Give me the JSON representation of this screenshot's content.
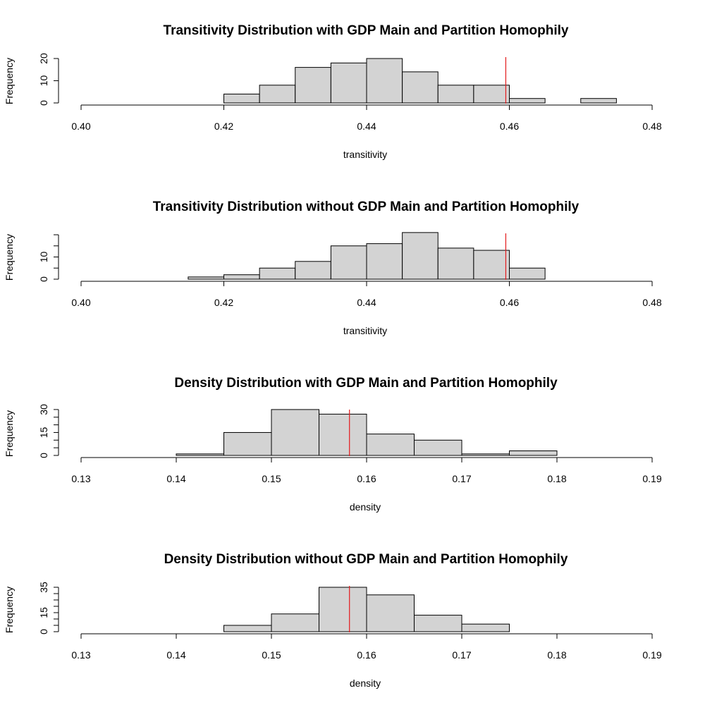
{
  "colors": {
    "bar_fill": "#d3d3d3",
    "bar_stroke": "#000000",
    "ref_line": "#e41a1c"
  },
  "chart_data": [
    {
      "type": "bar",
      "title": "Transitivity Distribution with GDP Main and Partition Homophily",
      "xlabel": "transitivity",
      "ylabel": "Frequency",
      "xlim": [
        0.4,
        0.48
      ],
      "xticks": [
        0.4,
        0.42,
        0.44,
        0.46,
        0.48
      ],
      "xtick_labels": [
        "0.40",
        "0.42",
        "0.44",
        "0.46",
        "0.48"
      ],
      "ylim": [
        0,
        20
      ],
      "yticks": [
        0,
        10,
        20
      ],
      "ytick_labels": [
        "0",
        "10",
        "20"
      ],
      "bins": [
        {
          "start": 0.42,
          "end": 0.425,
          "count": 4
        },
        {
          "start": 0.425,
          "end": 0.43,
          "count": 8
        },
        {
          "start": 0.43,
          "end": 0.435,
          "count": 16
        },
        {
          "start": 0.435,
          "end": 0.44,
          "count": 18
        },
        {
          "start": 0.44,
          "end": 0.445,
          "count": 20
        },
        {
          "start": 0.445,
          "end": 0.45,
          "count": 14
        },
        {
          "start": 0.45,
          "end": 0.455,
          "count": 8
        },
        {
          "start": 0.455,
          "end": 0.46,
          "count": 8
        },
        {
          "start": 0.46,
          "end": 0.465,
          "count": 2
        },
        {
          "start": 0.465,
          "end": 0.47,
          "count": 0
        },
        {
          "start": 0.47,
          "end": 0.475,
          "count": 2
        }
      ],
      "reference_line": 0.4595,
      "grid": false
    },
    {
      "type": "bar",
      "title": "Transitivity Distribution without GDP Main and Partition Homophily",
      "xlabel": "transitivity",
      "ylabel": "Frequency",
      "xlim": [
        0.4,
        0.48
      ],
      "xticks": [
        0.4,
        0.42,
        0.44,
        0.46,
        0.48
      ],
      "xtick_labels": [
        "0.40",
        "0.42",
        "0.44",
        "0.46",
        "0.48"
      ],
      "ylim": [
        0,
        20
      ],
      "yticks": [
        0,
        10
      ],
      "ytick_labels": [
        "0",
        "10"
      ],
      "yticks_minor": [
        0,
        5,
        10,
        15,
        20
      ],
      "bins": [
        {
          "start": 0.415,
          "end": 0.42,
          "count": 1
        },
        {
          "start": 0.42,
          "end": 0.425,
          "count": 2
        },
        {
          "start": 0.425,
          "end": 0.43,
          "count": 5
        },
        {
          "start": 0.43,
          "end": 0.435,
          "count": 8
        },
        {
          "start": 0.435,
          "end": 0.44,
          "count": 15
        },
        {
          "start": 0.44,
          "end": 0.445,
          "count": 16
        },
        {
          "start": 0.445,
          "end": 0.45,
          "count": 21
        },
        {
          "start": 0.45,
          "end": 0.455,
          "count": 14
        },
        {
          "start": 0.455,
          "end": 0.46,
          "count": 13
        },
        {
          "start": 0.46,
          "end": 0.465,
          "count": 5
        }
      ],
      "reference_line": 0.4595,
      "grid": false
    },
    {
      "type": "bar",
      "title": "Density Distribution with GDP Main and Partition Homophily",
      "xlabel": "density",
      "ylabel": "Frequency",
      "xlim": [
        0.13,
        0.19
      ],
      "xticks": [
        0.13,
        0.14,
        0.15,
        0.16,
        0.17,
        0.18,
        0.19
      ],
      "xtick_labels": [
        "0.13",
        "0.14",
        "0.15",
        "0.16",
        "0.17",
        "0.18",
        "0.19"
      ],
      "ylim": [
        0,
        30
      ],
      "yticks": [
        0,
        15,
        30
      ],
      "ytick_labels": [
        "0",
        "15",
        "30"
      ],
      "yticks_minor": [
        0,
        5,
        10,
        15,
        20,
        25,
        30
      ],
      "bins": [
        {
          "start": 0.14,
          "end": 0.145,
          "count": 1
        },
        {
          "start": 0.145,
          "end": 0.15,
          "count": 15
        },
        {
          "start": 0.15,
          "end": 0.155,
          "count": 30
        },
        {
          "start": 0.155,
          "end": 0.16,
          "count": 27
        },
        {
          "start": 0.16,
          "end": 0.165,
          "count": 14
        },
        {
          "start": 0.165,
          "end": 0.17,
          "count": 10
        },
        {
          "start": 0.17,
          "end": 0.175,
          "count": 1
        },
        {
          "start": 0.175,
          "end": 0.18,
          "count": 3
        }
      ],
      "reference_line": 0.1582,
      "grid": false
    },
    {
      "type": "bar",
      "title": "Density Distribution without GDP Main and Partition Homophily",
      "xlabel": "density",
      "ylabel": "Frequency",
      "xlim": [
        0.13,
        0.19
      ],
      "xticks": [
        0.13,
        0.14,
        0.15,
        0.16,
        0.17,
        0.18,
        0.19
      ],
      "xtick_labels": [
        "0.13",
        "0.14",
        "0.15",
        "0.16",
        "0.17",
        "0.18",
        "0.19"
      ],
      "ylim": [
        0,
        35
      ],
      "yticks": [
        0,
        15,
        35
      ],
      "ytick_labels": [
        "0",
        "15",
        "35"
      ],
      "yticks_minor": [
        0,
        5,
        10,
        15,
        20,
        25,
        30,
        35
      ],
      "bins": [
        {
          "start": 0.145,
          "end": 0.15,
          "count": 5
        },
        {
          "start": 0.15,
          "end": 0.155,
          "count": 14
        },
        {
          "start": 0.155,
          "end": 0.16,
          "count": 35
        },
        {
          "start": 0.16,
          "end": 0.165,
          "count": 29
        },
        {
          "start": 0.165,
          "end": 0.17,
          "count": 13
        },
        {
          "start": 0.17,
          "end": 0.175,
          "count": 6
        }
      ],
      "reference_line": 0.1582,
      "grid": false
    }
  ]
}
